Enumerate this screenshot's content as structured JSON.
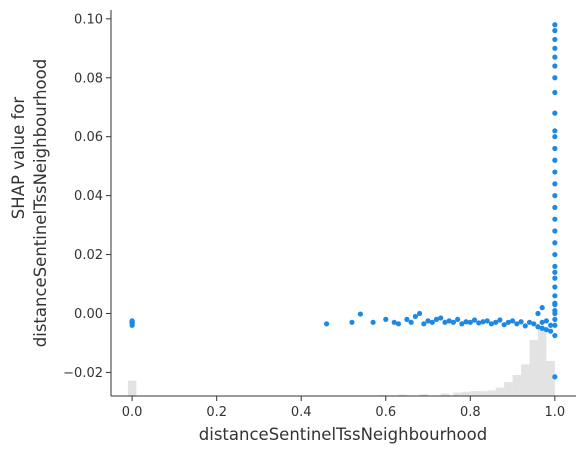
{
  "chart_data": {
    "type": "scatter",
    "xlabel": "distanceSentinelTssNeighbourhood",
    "ylabel_lines": [
      "SHAP value for",
      "distanceSentinelTssNeighbourhood"
    ],
    "xlim": [
      -0.05,
      1.05
    ],
    "ylim": [
      -0.028,
      0.103
    ],
    "x_ticks": [
      0.0,
      0.2,
      0.4,
      0.6,
      0.8,
      1.0
    ],
    "x_tick_labels": [
      "0.0",
      "0.2",
      "0.4",
      "0.6",
      "0.8",
      "1.0"
    ],
    "y_ticks": [
      -0.02,
      0.0,
      0.02,
      0.04,
      0.06,
      0.08,
      0.1
    ],
    "y_tick_labels": [
      "−0.02",
      "0.00",
      "0.02",
      "0.04",
      "0.06",
      "0.08",
      "0.10"
    ],
    "grid": false,
    "point_color": "#1E88E5",
    "histogram_color": "#e3e3e3",
    "histogram": {
      "note_units": "relative height, fraction of max bin",
      "bins": [
        [
          0.0,
          0.22
        ],
        [
          0.6,
          0.015
        ],
        [
          0.65,
          0.02
        ],
        [
          0.7,
          0.025
        ],
        [
          0.75,
          0.035
        ],
        [
          0.78,
          0.05
        ],
        [
          0.8,
          0.06
        ],
        [
          0.82,
          0.07
        ],
        [
          0.84,
          0.07
        ],
        [
          0.86,
          0.08
        ],
        [
          0.88,
          0.12
        ],
        [
          0.9,
          0.2
        ],
        [
          0.92,
          0.3
        ],
        [
          0.94,
          0.45
        ],
        [
          0.96,
          0.8
        ],
        [
          0.98,
          1.0
        ],
        [
          1.0,
          0.5
        ]
      ]
    },
    "points": [
      [
        0.0,
        -0.0025
      ],
      [
        0.0,
        -0.003
      ],
      [
        0.0,
        -0.0035
      ],
      [
        0.0,
        -0.004
      ],
      [
        0.0,
        -0.0028
      ],
      [
        0.0,
        -0.0033
      ],
      [
        0.46,
        -0.0035
      ],
      [
        0.52,
        -0.003
      ],
      [
        0.54,
        -0.0002
      ],
      [
        0.57,
        -0.003
      ],
      [
        0.6,
        -0.002
      ],
      [
        0.62,
        -0.003
      ],
      [
        0.63,
        -0.0035
      ],
      [
        0.65,
        -0.002
      ],
      [
        0.66,
        -0.003
      ],
      [
        0.67,
        -0.001
      ],
      [
        0.68,
        0.0
      ],
      [
        0.69,
        -0.0035
      ],
      [
        0.7,
        -0.0025
      ],
      [
        0.71,
        -0.003
      ],
      [
        0.72,
        -0.002
      ],
      [
        0.73,
        -0.0015
      ],
      [
        0.74,
        -0.003
      ],
      [
        0.75,
        -0.0025
      ],
      [
        0.76,
        -0.003
      ],
      [
        0.77,
        -0.002
      ],
      [
        0.78,
        -0.0035
      ],
      [
        0.79,
        -0.0028
      ],
      [
        0.8,
        -0.003
      ],
      [
        0.81,
        -0.0022
      ],
      [
        0.82,
        -0.0032
      ],
      [
        0.83,
        -0.0028
      ],
      [
        0.84,
        -0.0025
      ],
      [
        0.85,
        -0.0035
      ],
      [
        0.86,
        -0.003
      ],
      [
        0.87,
        -0.0022
      ],
      [
        0.88,
        -0.0038
      ],
      [
        0.89,
        -0.003
      ],
      [
        0.9,
        -0.0025
      ],
      [
        0.91,
        -0.0035
      ],
      [
        0.92,
        -0.0028
      ],
      [
        0.93,
        -0.0042
      ],
      [
        0.94,
        -0.003
      ],
      [
        0.95,
        -0.0035
      ],
      [
        0.96,
        -0.0045
      ],
      [
        0.97,
        -0.003
      ],
      [
        0.97,
        -0.005
      ],
      [
        0.98,
        -0.0025
      ],
      [
        0.98,
        -0.0055
      ],
      [
        0.99,
        -0.004
      ],
      [
        0.99,
        -0.006
      ],
      [
        1.0,
        -0.0075
      ],
      [
        0.97,
        0.002
      ],
      [
        0.96,
        0.0
      ],
      [
        1.0,
        -0.0215
      ],
      [
        1.0,
        0.001
      ],
      [
        1.0,
        0.003
      ],
      [
        1.0,
        0.006
      ],
      [
        1.0,
        0.009
      ],
      [
        1.0,
        0.012
      ],
      [
        1.0,
        0.016
      ],
      [
        1.0,
        0.02
      ],
      [
        1.0,
        0.024
      ],
      [
        1.0,
        0.028
      ],
      [
        1.0,
        0.032
      ],
      [
        1.0,
        0.036
      ],
      [
        1.0,
        0.04
      ],
      [
        1.0,
        0.044
      ],
      [
        1.0,
        0.048
      ],
      [
        1.0,
        0.052
      ],
      [
        1.0,
        0.056
      ],
      [
        1.0,
        0.06
      ],
      [
        1.0,
        0.062
      ],
      [
        1.0,
        0.068
      ],
      [
        1.0,
        0.075
      ],
      [
        1.0,
        0.08
      ],
      [
        1.0,
        0.084
      ],
      [
        1.0,
        0.087
      ],
      [
        1.0,
        0.09
      ],
      [
        1.0,
        0.093
      ],
      [
        1.0,
        0.096
      ],
      [
        1.0,
        0.098
      ],
      [
        1.0,
        0.0035
      ],
      [
        1.0,
        0.014
      ],
      [
        1.0,
        0.0
      ],
      [
        1.0,
        -0.002
      ],
      [
        1.0,
        -0.004
      ]
    ]
  }
}
